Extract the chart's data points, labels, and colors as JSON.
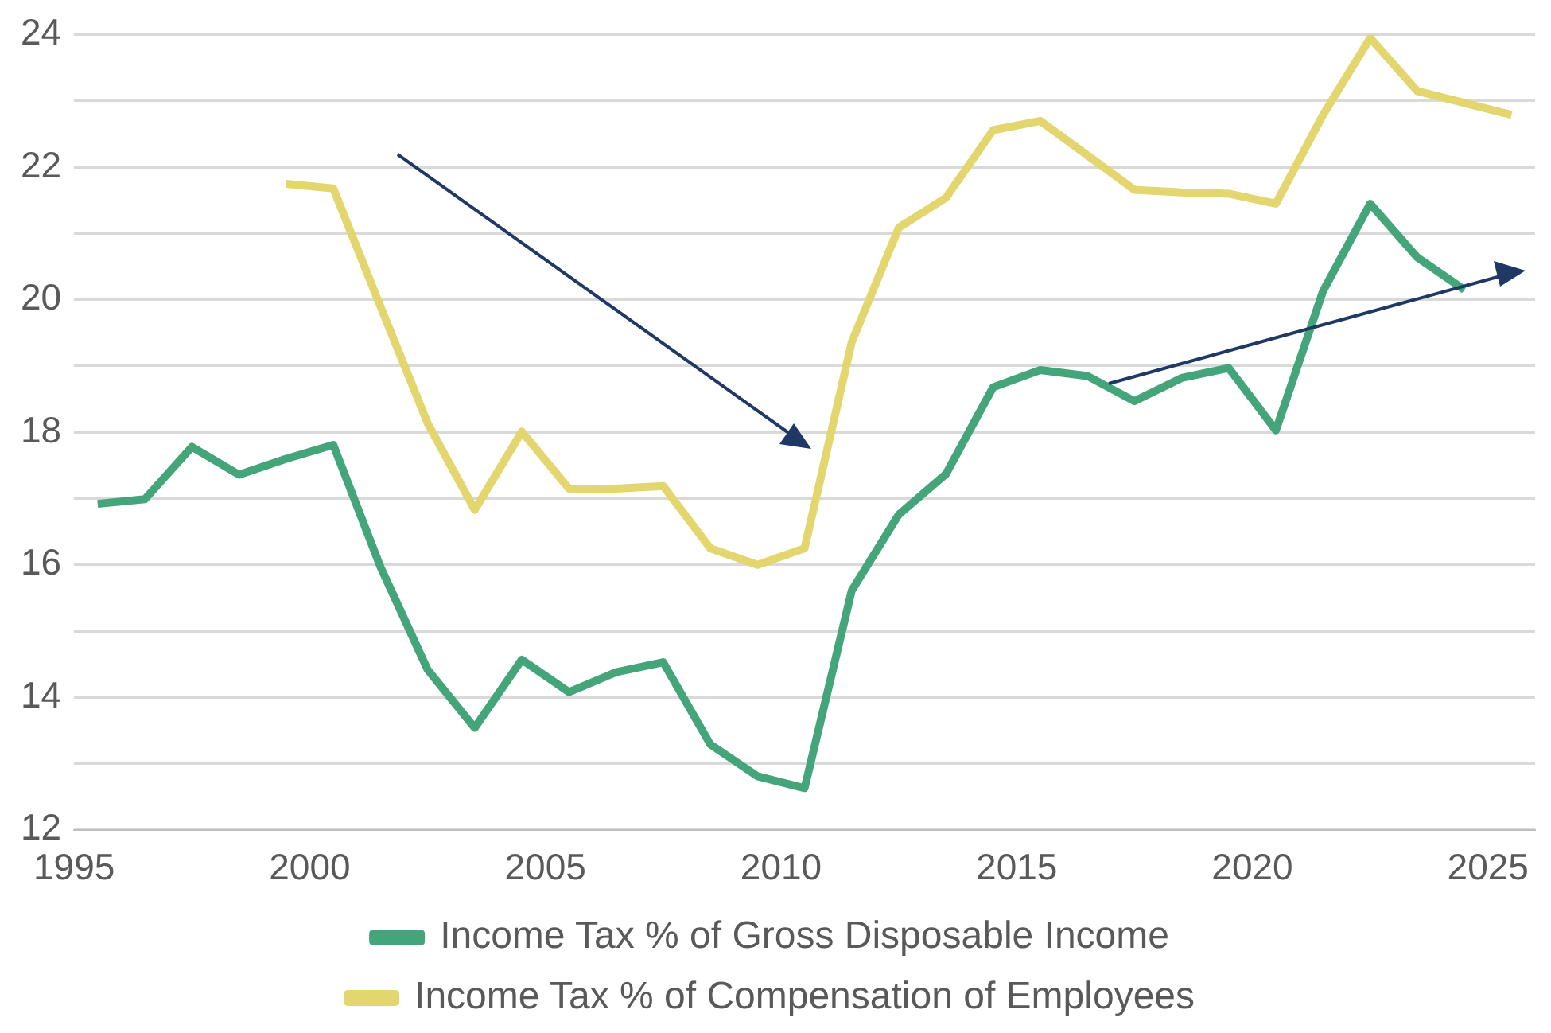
{
  "chart_data": {
    "type": "line",
    "xlim": [
      1995,
      2026
    ],
    "xticks": [
      1995,
      2000,
      2005,
      2010,
      2015,
      2020,
      2025
    ],
    "ylim": [
      12,
      24
    ],
    "yticks": [
      12,
      {
        "value": 13,
        "label": null
      },
      14,
      {
        "value": 15,
        "label": null
      },
      16,
      {
        "value": 17,
        "label": null
      },
      18,
      {
        "value": 19,
        "label": null
      },
      20,
      {
        "value": 21,
        "label": null
      },
      22,
      {
        "value": 23,
        "label": null
      },
      24
    ],
    "grid": "y",
    "legend": "bottom",
    "marker": "none",
    "line_style": "solid",
    "series": [
      {
        "name": "Income Tax % of Gross Disposable Income",
        "color": "#44a57a",
        "x": [
          1995.5,
          1996.5,
          1997.5,
          1998.5,
          1999.5,
          2000.5,
          2001.5,
          2002.5,
          2003.5,
          2004.5,
          2005.5,
          2006.5,
          2007.5,
          2008.5,
          2009.5,
          2010.5,
          2011.5,
          2012.5,
          2013.5,
          2014.5,
          2015.5,
          2016.5,
          2017.5,
          2018.5,
          2019.5,
          2020.5,
          2021.5,
          2022.5,
          2023.5,
          2024.5
        ],
        "values": [
          16.92,
          16.99,
          17.78,
          17.36,
          17.6,
          17.81,
          15.97,
          14.42,
          13.54,
          14.57,
          14.08,
          14.38,
          14.53,
          13.29,
          12.81,
          12.63,
          15.61,
          16.76,
          17.37,
          18.68,
          18.94,
          18.85,
          18.47,
          18.82,
          18.97,
          18.03,
          20.13,
          21.45,
          20.64,
          20.15
        ]
      },
      {
        "name": "Income Tax % of Compensation of Employees",
        "color": "#e3d66e",
        "x": [
          1999.5,
          2000.5,
          2001.5,
          2002.5,
          2003.5,
          2004.5,
          2005.5,
          2006.5,
          2007.5,
          2008.5,
          2009.5,
          2010.5,
          2011.5,
          2012.5,
          2013.5,
          2014.5,
          2015.5,
          2016.5,
          2017.5,
          2018.5,
          2019.5,
          2020.5,
          2021.5,
          2022.5,
          2023.5,
          2024.5,
          2025.5
        ],
        "values": [
          21.75,
          21.68,
          19.9,
          18.14,
          16.83,
          18.01,
          17.15,
          17.15,
          17.19,
          16.25,
          16.0,
          16.25,
          19.36,
          21.09,
          21.54,
          22.56,
          22.7,
          22.18,
          21.66,
          21.62,
          21.6,
          21.45,
          22.79,
          23.95,
          23.15,
          22.97,
          22.79
        ]
      }
    ]
  }
}
